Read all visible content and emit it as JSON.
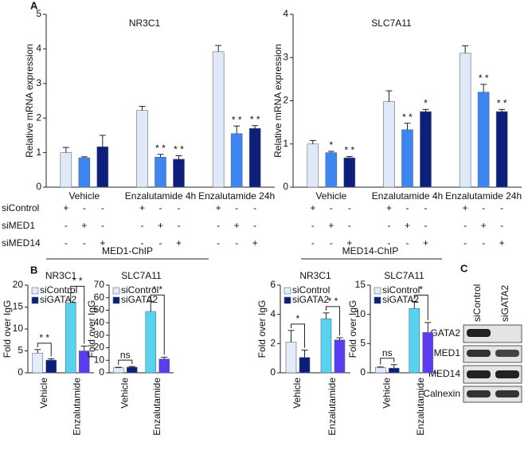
{
  "panel_a": {
    "label": "A",
    "treatments": [
      {
        "label": "siControl",
        "marks": [
          "+",
          "-",
          "-",
          "+",
          "-",
          "-",
          "+",
          "-",
          "-"
        ]
      },
      {
        "label": "siMED1",
        "marks": [
          "-",
          "+",
          "-",
          "-",
          "+",
          "-",
          "-",
          "+",
          "-"
        ]
      },
      {
        "label": "siMED14",
        "marks": [
          "-",
          "-",
          "+",
          "-",
          "-",
          "+",
          "-",
          "-",
          "+"
        ]
      }
    ]
  },
  "panel_b": {
    "label": "B",
    "groups": [
      "MED1-ChIP",
      "MED14-ChIP"
    ]
  },
  "panel_c": {
    "label": "C",
    "lanes": [
      "siControl",
      "siGATA2"
    ],
    "rows": [
      "GATA2",
      "MED1",
      "MED14",
      "Calnexin"
    ]
  },
  "chart_data": [
    {
      "type": "bar",
      "title": "NR3C1",
      "y_label": "Relative mRNA expression",
      "categories": [
        "Vehicle",
        "Enzalutamide 4h",
        "Enzalutamide 24h"
      ],
      "series": [
        {
          "name": "siControl",
          "color": "#dfe9f8",
          "values": [
            1.0,
            2.22,
            3.92
          ],
          "errors": [
            0.15,
            0.12,
            0.18
          ],
          "stars": [
            null,
            null,
            null
          ]
        },
        {
          "name": "siMED1",
          "color": "#3d85f0",
          "values": [
            0.85,
            0.87,
            1.55
          ],
          "errors": [
            0.03,
            0.08,
            0.22
          ],
          "stars": [
            null,
            "* *",
            "* *"
          ]
        },
        {
          "name": "siMED14",
          "color": "#0d1f7a",
          "values": [
            1.17,
            0.81,
            1.7
          ],
          "errors": [
            0.33,
            0.1,
            0.08
          ],
          "stars": [
            null,
            "* *",
            "* *"
          ]
        }
      ],
      "ylim": [
        0,
        5
      ],
      "yticks": [
        0,
        1,
        2,
        3,
        4,
        5
      ]
    },
    {
      "type": "bar",
      "title": "SLC7A11",
      "y_label": "Relative mRNA expression",
      "categories": [
        "Vehicle",
        "Enzalutamide 4h",
        "Enzalutamide 24h"
      ],
      "series": [
        {
          "name": "siControl",
          "color": "#dfe9f8",
          "values": [
            1.0,
            1.98,
            3.1
          ],
          "errors": [
            0.08,
            0.25,
            0.17
          ],
          "stars": [
            null,
            null,
            null
          ]
        },
        {
          "name": "siMED1",
          "color": "#3d85f0",
          "values": [
            0.8,
            1.33,
            2.2
          ],
          "errors": [
            0.03,
            0.15,
            0.18
          ],
          "stars": [
            "*",
            "* *",
            "* *"
          ]
        },
        {
          "name": "siMED14",
          "color": "#0d1f7a",
          "values": [
            0.68,
            1.75,
            1.75
          ],
          "errors": [
            0.03,
            0.05,
            0.05
          ],
          "stars": [
            "* *",
            "*",
            "* *"
          ]
        }
      ],
      "ylim": [
        0,
        4
      ],
      "yticks": [
        0,
        1,
        2,
        3,
        4
      ]
    },
    {
      "type": "grouped-bar",
      "title": "NR3C1",
      "y_label": "Fold over IgG",
      "categories": [
        "Vehicle",
        "Enzalutamide"
      ],
      "series": [
        {
          "name": "siControl",
          "colors": [
            "#e3ecf8",
            "#56d3ef"
          ],
          "values": [
            4.5,
            16
          ],
          "errors": [
            0.8,
            2.3
          ]
        },
        {
          "name": "siGATA2",
          "colors": [
            "#0c1f78",
            "#5b3cf0"
          ],
          "values": [
            2.9,
            5.0
          ],
          "errors": [
            0.3,
            1.1
          ]
        }
      ],
      "significance": [
        "* *",
        "* *"
      ],
      "ylim": [
        0,
        20
      ],
      "yticks": [
        0,
        5,
        10,
        15,
        20
      ]
    },
    {
      "type": "grouped-bar",
      "title": "SLC7A11",
      "y_label": "Fold over IgG",
      "categories": [
        "Vehicle",
        "Enzalutamide"
      ],
      "series": [
        {
          "name": "siControl",
          "colors": [
            "#e3ecf8",
            "#56d3ef"
          ],
          "values": [
            4,
            49
          ],
          "errors": [
            0.4,
            8
          ]
        },
        {
          "name": "siGATA2",
          "colors": [
            "#0c1f78",
            "#5b3cf0"
          ],
          "values": [
            4.5,
            11
          ],
          "errors": [
            0.5,
            1.5
          ]
        }
      ],
      "significance": [
        "ns",
        "* *"
      ],
      "ylim": [
        0,
        70
      ],
      "yticks": [
        0,
        10,
        20,
        30,
        40,
        50,
        60,
        70
      ]
    },
    {
      "type": "grouped-bar",
      "title": "NR3C1",
      "y_label": "Fold over IgG",
      "categories": [
        "Vehicle",
        "Enzalutamide"
      ],
      "series": [
        {
          "name": "siControl",
          "colors": [
            "#e3ecf8",
            "#56d3ef"
          ],
          "values": [
            2.1,
            3.7
          ],
          "errors": [
            0.8,
            0.4
          ]
        },
        {
          "name": "siGATA2",
          "colors": [
            "#0c1f78",
            "#5b3cf0"
          ],
          "values": [
            1.05,
            2.25
          ],
          "errors": [
            0.5,
            0.15
          ]
        }
      ],
      "significance": [
        "*",
        "* *"
      ],
      "ylim": [
        0,
        6
      ],
      "yticks": [
        0,
        2,
        4,
        6
      ]
    },
    {
      "type": "grouped-bar",
      "title": "SLC7A11",
      "y_label": "Fold over IgG",
      "categories": [
        "Vehicle",
        "Enzalutamide"
      ],
      "series": [
        {
          "name": "siControl",
          "colors": [
            "#e3ecf8",
            "#56d3ef"
          ],
          "values": [
            0.9,
            11
          ],
          "errors": [
            0.1,
            1.2
          ]
        },
        {
          "name": "siGATA2",
          "colors": [
            "#0c1f78",
            "#5b3cf0"
          ],
          "values": [
            0.8,
            6.9
          ],
          "errors": [
            0.6,
            1.7
          ]
        }
      ],
      "significance": [
        "ns",
        "*"
      ],
      "ylim": [
        0,
        15
      ],
      "yticks": [
        0,
        5,
        10,
        15
      ]
    }
  ]
}
